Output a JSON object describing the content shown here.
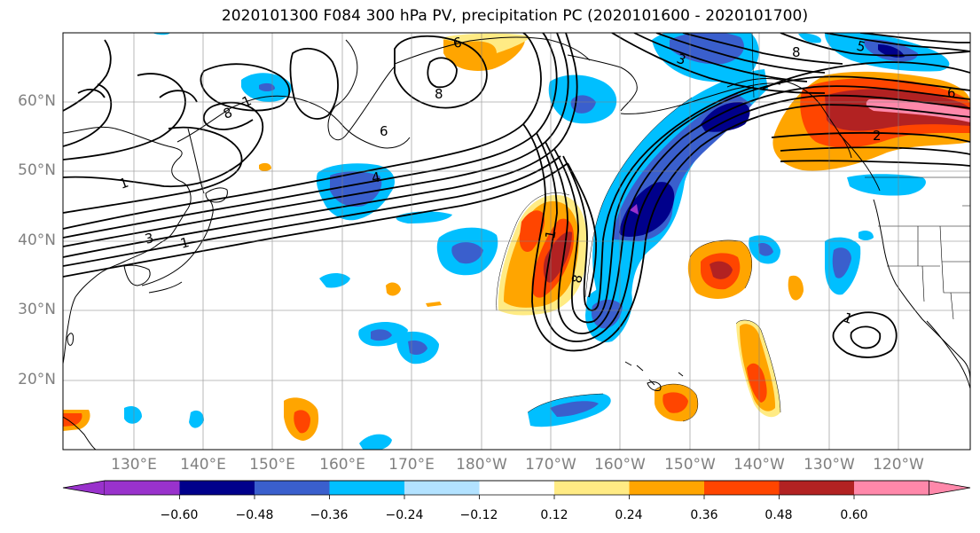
{
  "title": "2020101300 F084 300 hPa PV, precipitation PC (2020101600 - 2020101700)",
  "map": {
    "lat_labels": [
      "60°N",
      "50°N",
      "40°N",
      "30°N",
      "20°N"
    ],
    "lon_labels": [
      "130°E",
      "140°E",
      "150°E",
      "160°E",
      "170°E",
      "180°W",
      "170°W",
      "160°W",
      "150°W",
      "140°W",
      "130°W",
      "120°W"
    ],
    "pv_contour_labels": [
      "6",
      "8",
      "1",
      "1",
      "3",
      "1",
      "8",
      "6",
      "4",
      "1",
      "8",
      "3",
      "5",
      "2",
      "6",
      "8",
      "1"
    ]
  },
  "colorbar": {
    "tick_labels": [
      "−0.60",
      "−0.48",
      "−0.36",
      "−0.24",
      "−0.12",
      "0.12",
      "0.24",
      "0.36",
      "0.48",
      "0.60"
    ],
    "colors": [
      "#9932cc",
      "#00008b",
      "#3a5fcd",
      "#00bfff",
      "#b2e2ff",
      "#ffffff",
      "#ffeb84",
      "#ffa500",
      "#ff4500",
      "#b22222",
      "#ff88aa"
    ]
  }
}
